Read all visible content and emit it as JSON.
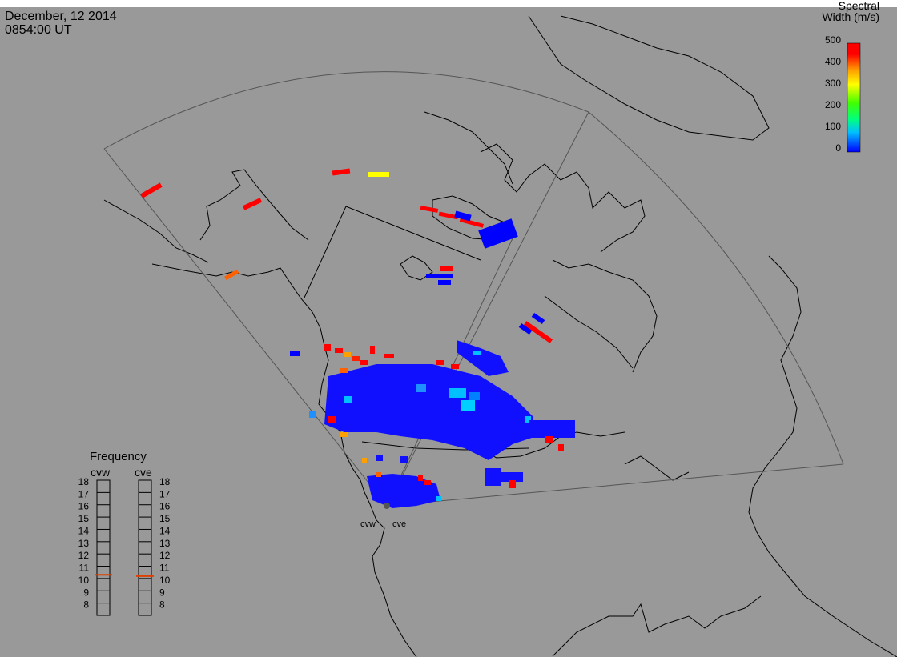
{
  "header": {
    "date": "December, 12 2014",
    "time": "0854:00 UT"
  },
  "colorbar": {
    "title_line1": "Spectral",
    "title_line2": "Width (m/s)",
    "ticks": [
      "500",
      "400",
      "300",
      "200",
      "100",
      "0"
    ],
    "colors": [
      "#0000ff",
      "#00bfff",
      "#00ff7f",
      "#40ff00",
      "#ffff00",
      "#ffa000",
      "#ff0000"
    ]
  },
  "frequency": {
    "title": "Frequency",
    "left_label": "cvw",
    "right_label": "cve",
    "ticks": [
      "18",
      "17",
      "16",
      "15",
      "14",
      "13",
      "12",
      "11",
      "10",
      "9",
      "8"
    ],
    "cvw_value": 10.8,
    "cve_value": 10.7,
    "range": [
      8,
      18
    ],
    "marker_color": "#e04000"
  },
  "radars": {
    "west_label": "cvw",
    "east_label": "cve"
  },
  "colors": {
    "background": "#999999",
    "top_strip": "#ffffff"
  }
}
